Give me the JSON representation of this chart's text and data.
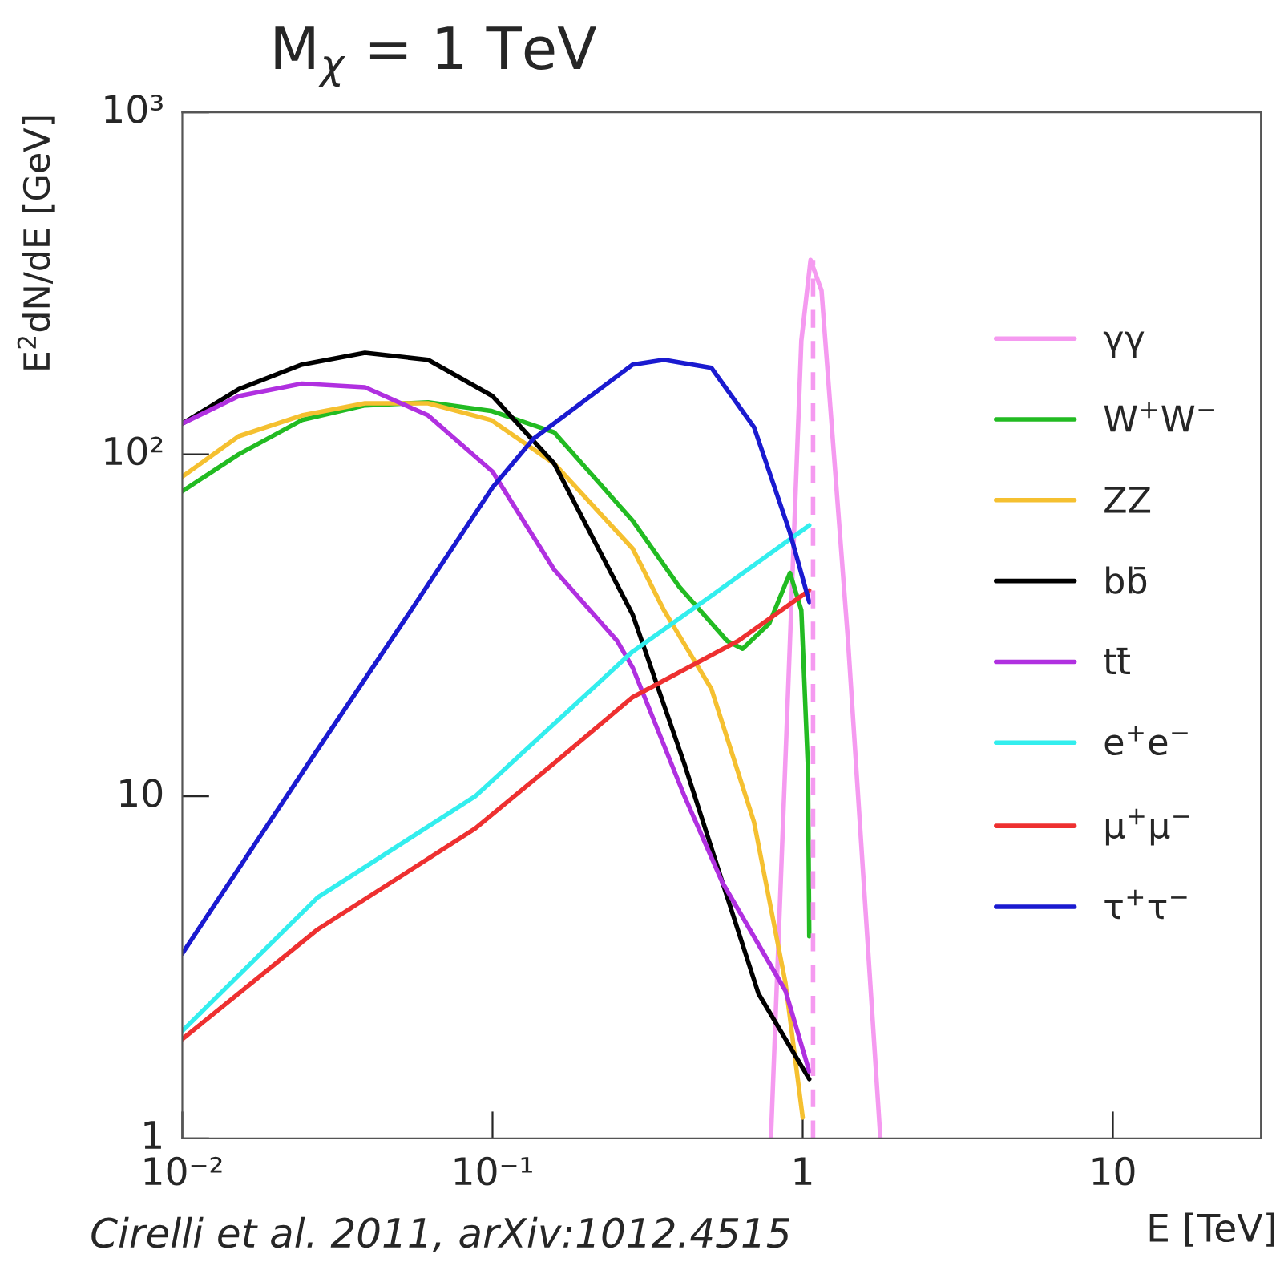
{
  "chart_data": {
    "type": "line",
    "title": "M$_{χ}$ = 1 TeV",
    "xlabel": "E [TeV]",
    "ylabel": "E$^{2}$dN/dE [GeV]",
    "log": "xy",
    "grid": false,
    "legend": "right",
    "marker": "none",
    "xlim": [
      0.01,
      30
    ],
    "ylim": [
      1,
      1000
    ],
    "xticks": [
      {
        "value": 0.01,
        "label": "10⁻²"
      },
      {
        "value": 0.1,
        "label": "10⁻¹"
      },
      1,
      10
    ],
    "yticks": [
      1,
      10,
      {
        "value": 100,
        "label": "10²"
      },
      {
        "value": 1000,
        "label": "10³"
      }
    ],
    "series": [
      {
        "name": "γγ",
        "color": "#f59af0",
        "x": [
          0.79,
          0.91,
          0.99,
          1.06,
          1.15,
          1.4,
          1.78
        ],
        "values": [
          1,
          28.5,
          215,
          370,
          301,
          28.5,
          1
        ]
      },
      {
        "name": "W$^{+}$W$^{−}$",
        "color": "#22bb22",
        "x": [
          0.01,
          0.0152,
          0.0243,
          0.0388,
          0.062,
          0.0989,
          0.158,
          0.283,
          0.4,
          0.57,
          0.64,
          0.78,
          0.91,
          0.99,
          1.04,
          1.05
        ],
        "values": [
          78,
          100,
          126,
          139,
          142,
          134,
          116,
          64,
          41,
          28.5,
          27,
          32,
          45,
          35,
          12,
          3.9
        ]
      },
      {
        "name": "ZZ",
        "color": "#f5c030",
        "x": [
          0.01,
          0.0152,
          0.0243,
          0.0388,
          0.062,
          0.0989,
          0.158,
          0.283,
          0.357,
          0.508,
          0.697,
          0.88,
          1.0
        ],
        "values": [
          86,
          113,
          130,
          141,
          141,
          126,
          94,
          53,
          35,
          20.6,
          8.4,
          2.85,
          1.15
        ]
      },
      {
        "name": "bb̄",
        "color": "#000000",
        "x": [
          0.01,
          0.0152,
          0.0243,
          0.0388,
          0.062,
          0.1,
          0.158,
          0.283,
          0.416,
          0.57,
          0.72,
          1.05
        ],
        "values": [
          123,
          155,
          183,
          198,
          189,
          148,
          94,
          34,
          12.4,
          5.1,
          2.65,
          1.49
        ]
      },
      {
        "name": "tt̄",
        "color": "#b030e0",
        "x": [
          0.01,
          0.0152,
          0.0243,
          0.0388,
          0.062,
          0.1,
          0.158,
          0.252,
          0.283,
          0.416,
          0.551,
          0.88,
          1.05
        ],
        "values": [
          123,
          148,
          161,
          157,
          130,
          89,
          46,
          28.5,
          23.8,
          10,
          5.6,
          2.7,
          1.57
        ]
      },
      {
        "name": "e$^{+}$e$^{−}$",
        "color": "#33eeee",
        "x": [
          0.01,
          0.0273,
          0.0879,
          0.283,
          0.508,
          1.05
        ],
        "values": [
          2.06,
          5.06,
          10,
          26.5,
          38.6,
          62
        ]
      },
      {
        "name": "μ$^{+}$μ$^{−}$",
        "color": "#ee3030",
        "x": [
          0.01,
          0.0273,
          0.0879,
          0.158,
          0.283,
          0.62,
          1.05
        ],
        "values": [
          1.95,
          4.08,
          8.05,
          12.5,
          19.5,
          28.5,
          40
        ]
      },
      {
        "name": "τ$^{+}$τ$^{−}$",
        "color": "#1a1ad0",
        "x": [
          0.01,
          0.0273,
          0.0551,
          0.1,
          0.1355,
          0.283,
          0.357,
          0.508,
          0.697,
          0.91,
          1.05
        ],
        "values": [
          3.47,
          13.7,
          35.4,
          80,
          111,
          183,
          189,
          179,
          120,
          59,
          37
        ]
      },
      {
        "color": "#f59af0",
        "line_style": "dashed",
        "x": [
          1.08,
          1.08
        ],
        "values": [
          1,
          370
        ]
      }
    ],
    "annotations": [
      "Cirelli et al. 2011, arXiv:1012.4515"
    ]
  }
}
